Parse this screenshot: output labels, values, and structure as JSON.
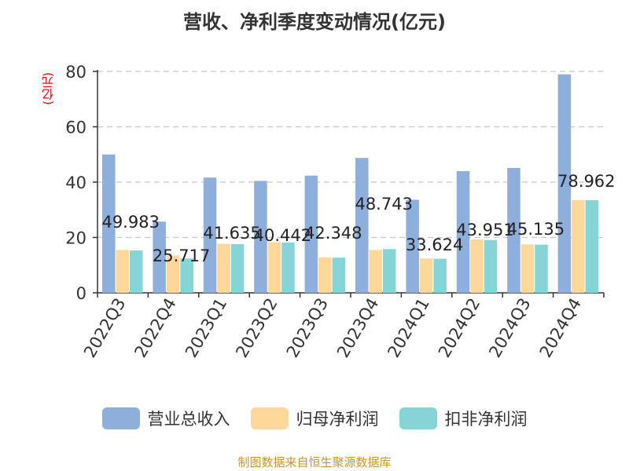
{
  "title": "营收、净利季度变动情况(亿元)",
  "source": "制图数据来自恒生聚源数据库",
  "chart_data": {
    "type": "bar",
    "title": "营收、净利季度变动情况(亿元)",
    "ylabel": "(亿元)",
    "xlabel": "",
    "ylim": [
      0,
      80
    ],
    "yticks": [
      0,
      20,
      40,
      60,
      80
    ],
    "grid": true,
    "legend_position": "bottom",
    "categories": [
      "2022Q3",
      "2022Q4",
      "2023Q1",
      "2023Q2",
      "2023Q3",
      "2023Q4",
      "2024Q1",
      "2024Q2",
      "2024Q3",
      "2024Q4"
    ],
    "series": [
      {
        "name": "营业总收入",
        "color": "#8eaedb",
        "values": [
          49.983,
          25.717,
          41.635,
          40.442,
          42.348,
          48.743,
          33.624,
          43.951,
          45.135,
          78.962
        ],
        "labels": [
          "49.983",
          "25.717",
          "41.635",
          "40.442",
          "42.348",
          "48.743",
          "33.624",
          "43.951",
          "45.135",
          "78.962"
        ]
      },
      {
        "name": "归母净利润",
        "color": "#fed79a",
        "values": [
          15.5,
          13.5,
          17.7,
          18.3,
          12.8,
          15.5,
          12.4,
          19.3,
          17.5,
          33.5
        ]
      },
      {
        "name": "扣非净利润",
        "color": "#86d4d6",
        "values": [
          15.3,
          12.4,
          17.6,
          18.2,
          12.7,
          15.8,
          12.3,
          19.1,
          17.4,
          33.5
        ]
      }
    ]
  }
}
